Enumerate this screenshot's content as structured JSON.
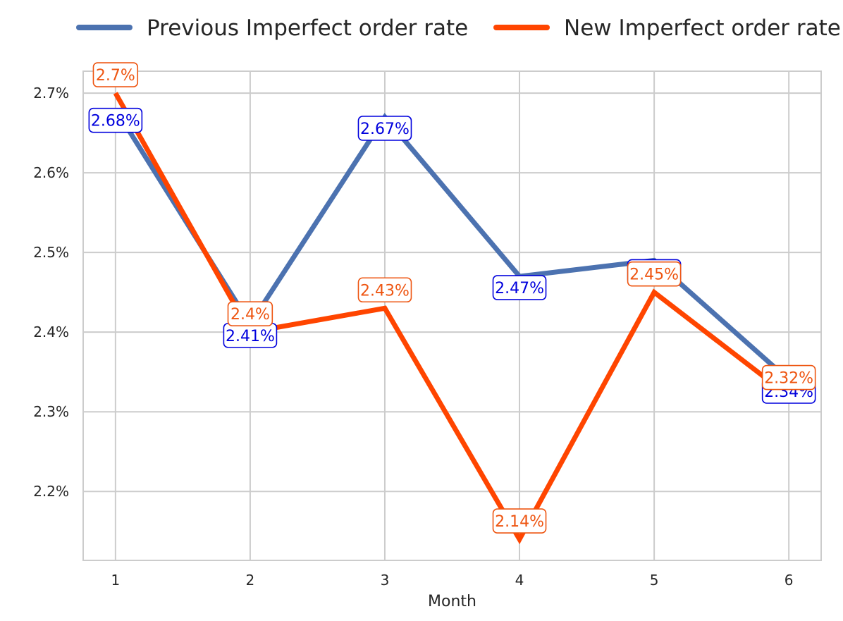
{
  "chart_data": {
    "type": "line",
    "title": "",
    "xlabel": "Month",
    "ylabel": "",
    "x": [
      1,
      2,
      3,
      4,
      5,
      6
    ],
    "xlim": [
      0.76,
      6.24
    ],
    "ylim": [
      2.1135,
      2.7275
    ],
    "y_ticks": [
      2.2,
      2.3,
      2.4,
      2.5,
      2.6,
      2.7
    ],
    "y_tick_labels": [
      "2.2%",
      "2.3%",
      "2.4%",
      "2.5%",
      "2.6%",
      "2.7%"
    ],
    "x_tick_labels": [
      "1",
      "2",
      "3",
      "4",
      "5",
      "6"
    ],
    "grid": true,
    "legend_position": "top",
    "series": [
      {
        "name": "Previous Imperfect order rate",
        "color": "#4c72b0",
        "label_color": "#0000dd",
        "label_placement": "below",
        "values": [
          2.68,
          2.41,
          2.67,
          2.47,
          2.49,
          2.34
        ],
        "labels": [
          "2.68%",
          "2.41%",
          "2.67%",
          "2.47%",
          "2.49%",
          "2.34%"
        ]
      },
      {
        "name": "New Imperfect order rate",
        "color": "#ff4500",
        "label_color": "#ee5511",
        "label_placement": "above",
        "values": [
          2.7,
          2.4,
          2.43,
          2.14,
          2.45,
          2.32
        ],
        "labels": [
          "2.7%",
          "2.4%",
          "2.43%",
          "2.14%",
          "2.45%",
          "2.32%"
        ]
      }
    ]
  }
}
